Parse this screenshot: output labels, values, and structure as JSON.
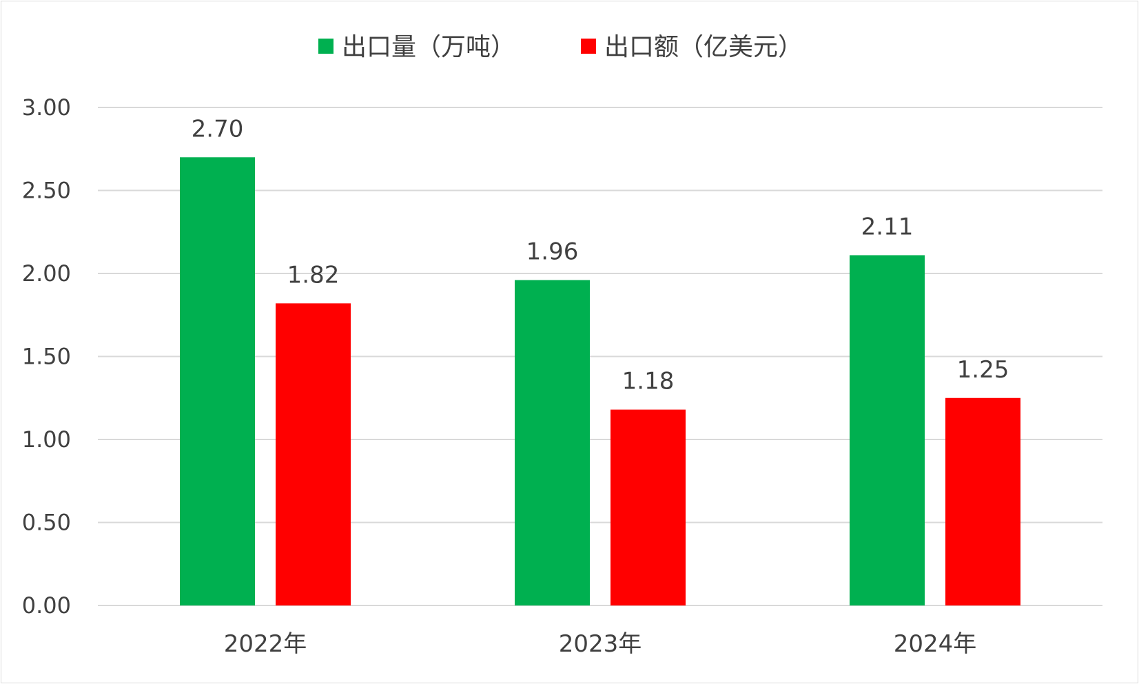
{
  "chart_data": {
    "type": "bar",
    "categories": [
      "2022年",
      "2023年",
      "2024年"
    ],
    "series": [
      {
        "name": "出口量（万吨）",
        "values": [
          2.7,
          1.96,
          2.11
        ],
        "labels": [
          "2.70",
          "1.96",
          "2.11"
        ],
        "color": "#00b050"
      },
      {
        "name": "出口额（亿美元）",
        "values": [
          1.82,
          1.18,
          1.25
        ],
        "labels": [
          "1.82",
          "1.18",
          "1.25"
        ],
        "color": "#ff0000"
      }
    ],
    "ylim": [
      0,
      3
    ],
    "yticks": [
      0,
      0.5,
      1,
      1.5,
      2,
      2.5,
      3
    ],
    "ytick_labels": [
      "0.00",
      "0.50",
      "1.00",
      "1.50",
      "2.00",
      "2.50",
      "3.00"
    ],
    "grid": true,
    "legend": "top-center",
    "gridline_color": "#d9d9d9"
  }
}
